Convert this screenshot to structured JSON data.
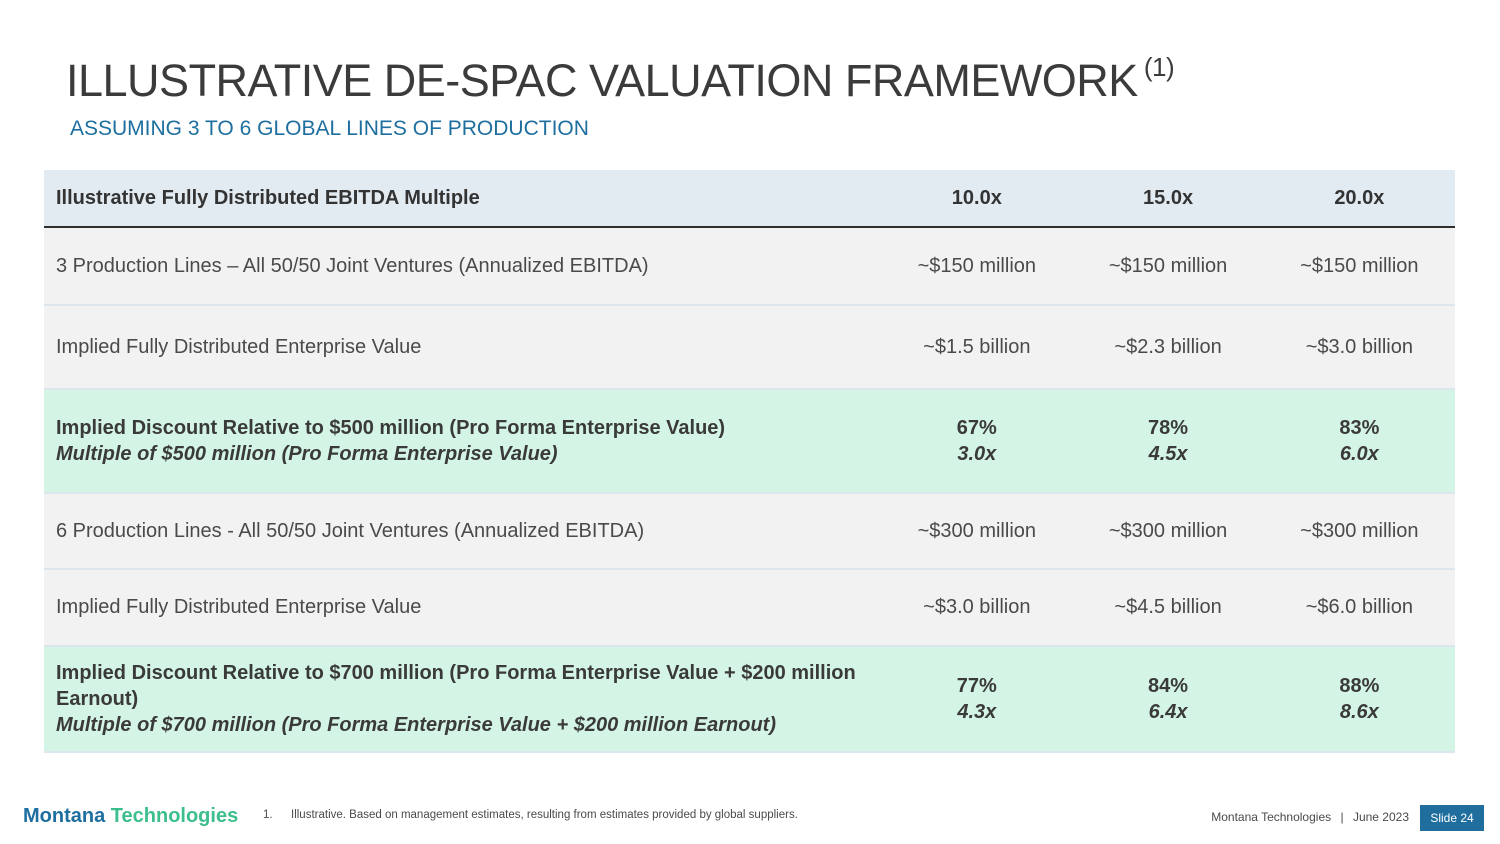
{
  "header": {
    "title": "ILLUSTRATIVE DE-SPAC VALUATION FRAMEWORK",
    "title_note": "(1)",
    "subtitle": "ASSUMING 3 TO 6 GLOBAL LINES OF PRODUCTION"
  },
  "table": {
    "header": {
      "label": "Illustrative Fully Distributed EBITDA Multiple",
      "cols": [
        "10.0x",
        "15.0x",
        "20.0x"
      ]
    },
    "rows": [
      {
        "label": "3 Production Lines – All 50/50 Joint Ventures (Annualized EBITDA)",
        "values": [
          "~$150 million",
          "~$150 million",
          "~$150 million"
        ]
      },
      {
        "label": "Implied Fully Distributed Enterprise Value",
        "values": [
          "~$1.5 billion",
          "~$2.3 billion",
          "~$3.0 billion"
        ]
      },
      {
        "label": "Implied Discount Relative to $500 million (Pro Forma Enterprise Value)",
        "sublabel": "Multiple of $500 million (Pro Forma Enterprise Value)",
        "values": [
          "67%",
          "78%",
          "83%"
        ],
        "subvalues": [
          "3.0x",
          "4.5x",
          "6.0x"
        ]
      },
      {
        "label": "6 Production Lines - All 50/50 Joint Ventures (Annualized EBITDA)",
        "values": [
          "~$300 million",
          "~$300 million",
          "~$300 million"
        ]
      },
      {
        "label": "Implied Fully Distributed Enterprise Value",
        "values": [
          "~$3.0 billion",
          "~$4.5 billion",
          "~$6.0 billion"
        ]
      },
      {
        "label": "Implied Discount Relative to $700 million (Pro Forma Enterprise Value + $200 million Earnout)",
        "sublabel": "Multiple of $700 million (Pro Forma Enterprise Value + $200 million Earnout)",
        "values": [
          "77%",
          "84%",
          "88%"
        ],
        "subvalues": [
          "4.3x",
          "6.4x",
          "8.6x"
        ]
      }
    ]
  },
  "footer": {
    "logo_word1": "Montana",
    "logo_word2": "Technologies",
    "footnote_number": "1.",
    "footnote_text": "Illustrative. Based on management estimates, resulting from estimates provided by global suppliers.",
    "company": "Montana Technologies",
    "separator": "|",
    "date": "June 2023",
    "slide_label": "Slide 24"
  },
  "colors": {
    "accent_blue": "#1e6f9f",
    "accent_green": "#3cbf8c",
    "header_row_bg": "#e3ebf2",
    "gray_row_bg": "#f2f2f2",
    "highlight_row_bg": "#d4f5e6"
  }
}
